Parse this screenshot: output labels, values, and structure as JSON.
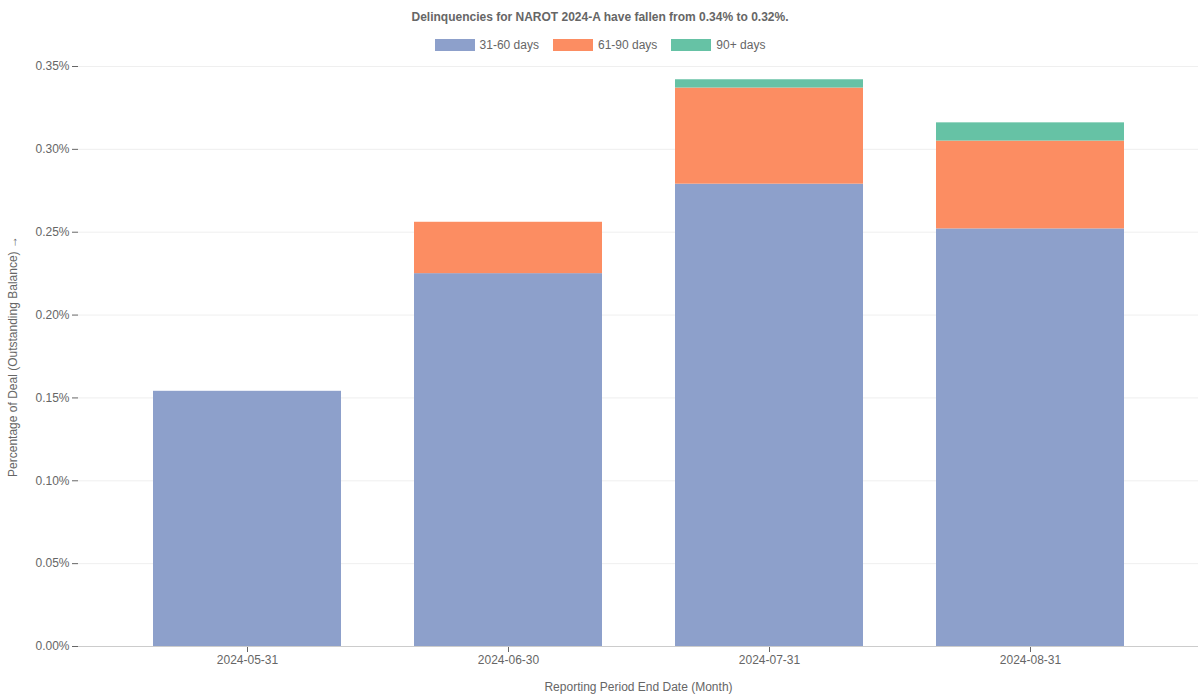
{
  "chart_data": {
    "type": "bar",
    "stacked": true,
    "grid": true,
    "legend": "top",
    "title": "Delinquencies for NAROT 2024-A have fallen from 0.34% to 0.32%.",
    "x_label": "Reporting Period End Date (Month)",
    "y_label": "Percentage of Deal (Outstanding Balance)",
    "categories": [
      "2024-05-31",
      "2024-06-30",
      "2024-07-31",
      "2024-08-31"
    ],
    "series": [
      {
        "name": "31-60 days",
        "color": "#8da0cb",
        "values": [
          0.154,
          0.225,
          0.279,
          0.252
        ]
      },
      {
        "name": "61-90 days",
        "color": "#fc8d62",
        "values": [
          0,
          0.031,
          0.058,
          0.053
        ]
      },
      {
        "name": "90+ days",
        "color": "#66c2a5",
        "values": [
          0,
          0,
          0.005,
          0.011
        ]
      }
    ],
    "ylim": [
      0,
      0.35
    ],
    "yticks": [
      {
        "value": 0,
        "label": "0.00%"
      },
      {
        "value": 0.05,
        "label": "0.05%"
      },
      {
        "value": 0.1,
        "label": "0.10%"
      },
      {
        "value": 0.15,
        "label": "0.15%"
      },
      {
        "value": 0.2,
        "label": "0.20%"
      },
      {
        "value": 0.25,
        "label": "0.25%"
      },
      {
        "value": 0.3,
        "label": "0.30%"
      },
      {
        "value": 0.35,
        "label": "0.35%"
      }
    ]
  }
}
